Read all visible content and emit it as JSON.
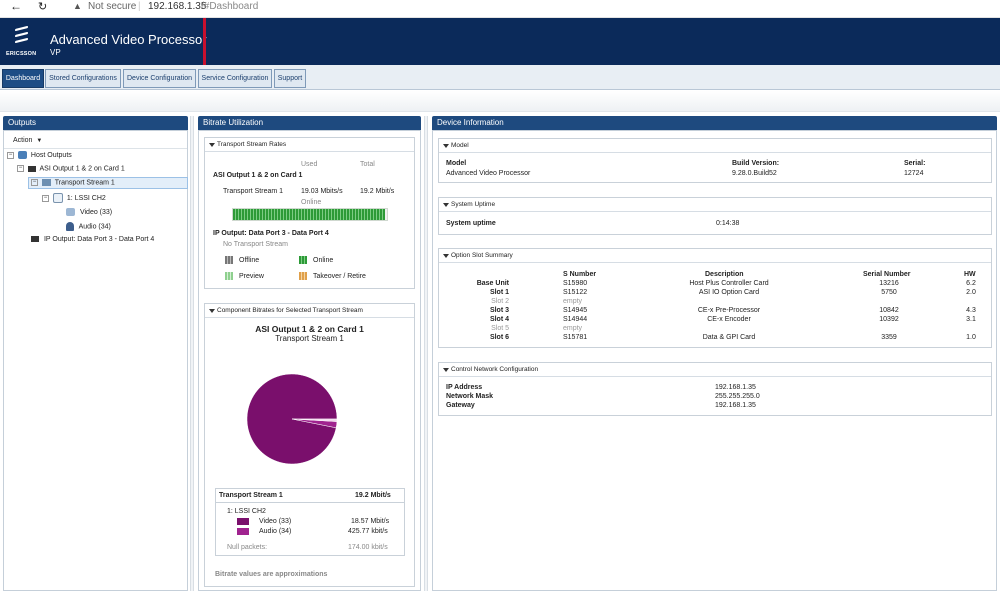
{
  "browser": {
    "back_icon": "arrow-left-icon",
    "reload_icon": "reload-icon",
    "security_label": "Not secure",
    "url_host": "192.168.1.35",
    "url_path": "/#Dashboard"
  },
  "header": {
    "brand": "ERICSSON",
    "title": "Advanced Video Processor",
    "subtitle": "VP"
  },
  "tabs": [
    {
      "label": "Dashboard"
    },
    {
      "label": "Stored Configurations"
    },
    {
      "label": "Device Configuration"
    },
    {
      "label": "Service Configuration"
    },
    {
      "label": "Support"
    }
  ],
  "outputs": {
    "title": "Outputs",
    "action_label": "Action",
    "tree": {
      "host": "Host Outputs",
      "asi": "ASI Output 1 & 2 on Card 1",
      "ts": "Transport Stream 1",
      "lssi": "1: LSSI CH2",
      "video": "Video (33)",
      "audio": "Audio (34)",
      "ip": "IP Output: Data Port 3 - Data Port 4"
    }
  },
  "bitrate": {
    "title": "Bitrate Utilization",
    "ts_rates": {
      "title": "Transport Stream Rates",
      "col_used": "Used",
      "col_total": "Total",
      "asi_heading": "ASI Output 1 & 2 on Card 1",
      "ts_name": "Transport Stream 1",
      "used": "19.03 Mbits/s",
      "total": "19.2 Mbit/s",
      "status": "Online",
      "utilization": 0.99,
      "ip_heading": "IP Output: Data Port 3 - Data Port 4",
      "ip_status": "No Transport Stream"
    },
    "legend": {
      "offline": "Offline",
      "online": "Online",
      "preview": "Preview",
      "takeover": "Takeover / Retire"
    },
    "component": {
      "title": "Component Bitrates for Selected Transport Stream",
      "chart_title": "ASI Output 1 & 2 on Card 1",
      "chart_subtitle": "Transport Stream 1",
      "summary_name": "Transport Stream 1",
      "summary_total": "19.2 Mbit/s",
      "service": "1: LSSI CH2",
      "video_label": "Video (33)",
      "video_rate": "18.57 Mbit/s",
      "audio_label": "Audio (34)",
      "audio_rate": "425.77 kbit/s",
      "null_label": "Null packets:",
      "null_rate": "174.00 kbit/s",
      "note": "Bitrate values are approximations"
    }
  },
  "chart_data": {
    "type": "pie",
    "categories": [
      "Video (33)",
      "Audio (34)",
      "Null packets"
    ],
    "values": [
      18.57,
      0.42577,
      0.174
    ],
    "colors": [
      "#7a0f6c",
      "#a0238f",
      "#f2d7ee"
    ]
  },
  "device": {
    "title": "Device Information",
    "model": {
      "title": "Model",
      "model_label": "Model",
      "model_value": "Advanced Video Processor",
      "build_label": "Build Version:",
      "build_value": "9.28.0.Build52",
      "serial_label": "Serial:",
      "serial_value": "12724"
    },
    "uptime": {
      "title": "System Uptime",
      "label": "System uptime",
      "value": "0:14:38"
    },
    "slots": {
      "title": "Option Slot Summary",
      "headers": [
        "S Number",
        "Description",
        "Serial Number",
        "HW"
      ],
      "rows": [
        {
          "slot": "Base Unit",
          "snum": "S15980",
          "desc": "Host Plus Controller Card",
          "serial": "13216",
          "hw": "6.2",
          "empty": false
        },
        {
          "slot": "Slot 1",
          "snum": "S15122",
          "desc": "ASI IO Option Card",
          "serial": "5750",
          "hw": "2.0",
          "empty": false
        },
        {
          "slot": "Slot 2",
          "snum": "empty",
          "desc": "",
          "serial": "",
          "hw": "",
          "empty": true
        },
        {
          "slot": "Slot 3",
          "snum": "S14945",
          "desc": "CE-x Pre-Processor",
          "serial": "10842",
          "hw": "4.3",
          "empty": false
        },
        {
          "slot": "Slot 4",
          "snum": "S14944",
          "desc": "CE-x Encoder",
          "serial": "10392",
          "hw": "3.1",
          "empty": false
        },
        {
          "slot": "Slot 5",
          "snum": "empty",
          "desc": "",
          "serial": "",
          "hw": "",
          "empty": true
        },
        {
          "slot": "Slot 6",
          "snum": "S15781",
          "desc": "Data & GPI Card",
          "serial": "3359",
          "hw": "1.0",
          "empty": false
        }
      ]
    },
    "network": {
      "title": "Control Network Configuration",
      "ip_label": "IP Address",
      "ip_value": "192.168.1.35",
      "mask_label": "Network Mask",
      "mask_value": "255.255.255.0",
      "gw_label": "Gateway",
      "gw_value": "192.168.1.35"
    }
  }
}
